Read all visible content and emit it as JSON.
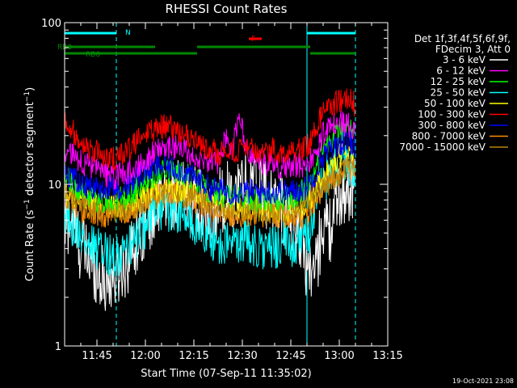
{
  "chart_data": {
    "type": "line",
    "title": "RHESSI Count Rates",
    "xlabel": "Start Time (07-Sep-11 11:35:02)",
    "ylabel": "Count Rate (s⁻¹ detector segment⁻¹)",
    "ylabel_parts": {
      "main": "Count Rate (s",
      "sup1": "−1",
      "mid": " detector segment",
      "sup2": "−1",
      "end": ")"
    },
    "yscale": "log",
    "ylim": [
      1,
      100
    ],
    "y_ticks": [
      "1",
      "10",
      "100"
    ],
    "x_ticks": [
      "11:45",
      "12:00",
      "12:15",
      "12:30",
      "12:45",
      "13:00",
      "13:15"
    ],
    "x_tick_minutes": [
      10,
      25,
      40,
      55,
      70,
      85,
      100
    ],
    "x_minutes_range": [
      0,
      100
    ],
    "legend_header": [
      "Det 1f,3f,4f,5f,6f,9f,",
      "FDecim 3, Att 0"
    ],
    "legend_placement": "right",
    "footer": "19-Oct-2021 23:08",
    "series": [
      {
        "name": "3 - 6 keV",
        "color": "#ffffff",
        "x_min": [
          0,
          2,
          5,
          10,
          12,
          14,
          17,
          20,
          25,
          28,
          33,
          38,
          42,
          45,
          48,
          51,
          53,
          55,
          60,
          65,
          70,
          73,
          75,
          78,
          80,
          82,
          85,
          90
        ],
        "values": [
          5.5,
          6,
          4,
          3,
          2.5,
          2.5,
          3,
          3.5,
          6,
          7,
          8.5,
          8.5,
          7.5,
          5,
          8,
          9,
          8.5,
          10.5,
          9.5,
          8,
          6,
          5,
          3,
          3,
          6,
          5,
          8.5,
          10.5
        ]
      },
      {
        "name": "6 - 12 keV",
        "color": "#ff00ff",
        "x_min": [
          0,
          5,
          10,
          15,
          20,
          25,
          30,
          35,
          40,
          44,
          48,
          50,
          52,
          54,
          56,
          58,
          60,
          65,
          70,
          75,
          78,
          80,
          85,
          88,
          90
        ],
        "values": [
          16,
          14,
          12,
          11,
          12,
          14,
          17,
          17,
          15,
          13,
          14,
          20,
          15,
          28,
          16,
          15,
          14,
          13,
          12.5,
          13.5,
          15,
          21,
          24,
          23,
          22
        ]
      },
      {
        "name": "12 - 25 keV",
        "color": "#00ff00",
        "x_min": [
          0,
          5,
          10,
          15,
          20,
          25,
          30,
          35,
          40,
          45,
          50,
          55,
          60,
          65,
          70,
          75,
          78,
          80,
          85,
          88,
          90
        ],
        "values": [
          11,
          9,
          8,
          8,
          8.5,
          10.5,
          12,
          12,
          11,
          9,
          8.5,
          8.5,
          8,
          8,
          8,
          9.5,
          12,
          17,
          21,
          22,
          20
        ]
      },
      {
        "name": "25 - 50 keV",
        "color": "#00ffff",
        "x_min": [
          0,
          3,
          6,
          9,
          12,
          15,
          18,
          22,
          25,
          28,
          32,
          36,
          40,
          44,
          48,
          52,
          56,
          60,
          64,
          68,
          72,
          76,
          78,
          80,
          84,
          88,
          90
        ],
        "values": [
          6.5,
          5.5,
          4.5,
          4,
          3.8,
          3.6,
          3.8,
          4.5,
          5.5,
          6.8,
          7,
          6.5,
          5.5,
          4.8,
          4.3,
          4.3,
          4.5,
          4,
          4,
          4.3,
          4.2,
          5,
          8,
          10.5,
          13,
          13.5,
          12.5
        ]
      },
      {
        "name": "50 - 100 keV",
        "color": "#ffff00",
        "x_min": [
          0,
          10,
          20,
          30,
          40,
          50,
          60,
          70,
          75,
          80,
          85,
          90
        ],
        "values": [
          9,
          7.5,
          7.5,
          9.5,
          9,
          7.5,
          7,
          6.8,
          7.5,
          11,
          15,
          15
        ]
      },
      {
        "name": "100 - 300 keV",
        "color": "#ff0000",
        "x_min": [
          0,
          3,
          6,
          9,
          12,
          15,
          18,
          20,
          22,
          25,
          28,
          32,
          36,
          40,
          44,
          48,
          52,
          56,
          60,
          64,
          68,
          72,
          76,
          78,
          80,
          84,
          88,
          90
        ],
        "values": [
          26,
          21,
          18,
          16,
          15,
          14.5,
          15,
          16.5,
          18,
          20,
          22,
          23,
          21,
          18,
          16.5,
          15.5,
          16,
          16.5,
          16,
          16.5,
          16,
          16.5,
          18,
          23,
          28,
          32,
          34,
          31
        ]
      },
      {
        "name": "300 - 800 keV",
        "color": "#0000ff",
        "x_min": [
          0,
          5,
          10,
          15,
          20,
          25,
          30,
          35,
          40,
          45,
          50,
          55,
          60,
          65,
          70,
          75,
          78,
          80,
          85,
          90
        ],
        "values": [
          12,
          10,
          9.5,
          9.5,
          10,
          12,
          13,
          12.5,
          11,
          9.5,
          9,
          9,
          9,
          9,
          9,
          9.5,
          12,
          15,
          18,
          18
        ]
      },
      {
        "name": "800 - 7000 keV",
        "color": "#ff8c00",
        "x_min": [
          0,
          5,
          10,
          15,
          20,
          25,
          30,
          35,
          40,
          45,
          50,
          55,
          60,
          65,
          70,
          75,
          78,
          80,
          85,
          90
        ],
        "values": [
          8,
          7,
          6.5,
          6.5,
          7,
          8,
          9,
          9,
          8,
          7,
          6.5,
          6.5,
          6.5,
          6.5,
          6,
          6.5,
          8,
          10,
          12,
          12
        ]
      },
      {
        "name": "7000 - 15000 keV",
        "color": "#b8860b",
        "x_min": [
          0,
          10,
          20,
          30,
          40,
          50,
          60,
          70,
          80,
          90
        ],
        "values": [
          8.5,
          7,
          7,
          8.5,
          8.5,
          7,
          6.8,
          6.5,
          9.5,
          13.5
        ]
      }
    ],
    "annotations": {
      "N": {
        "label": "N",
        "color": "#00ffff",
        "segments": [
          [
            0,
            16
          ],
          [
            75,
            90
          ]
        ]
      },
      "RB0": {
        "label": "RB0",
        "color": "#008800",
        "segments": [
          [
            0,
            28
          ],
          [
            41,
            76
          ]
        ]
      },
      "RB6": {
        "label": "RB6",
        "color": "#008800",
        "segments": [
          [
            0,
            28
          ],
          [
            28,
            41
          ],
          [
            76,
            90
          ]
        ]
      },
      "F": {
        "label": "F",
        "color": "#ff0000",
        "segments": [
          [
            57,
            61
          ]
        ]
      },
      "vlines_solid_min": [
        0,
        75
      ],
      "vlines_dashed_min": [
        16,
        90
      ]
    }
  }
}
